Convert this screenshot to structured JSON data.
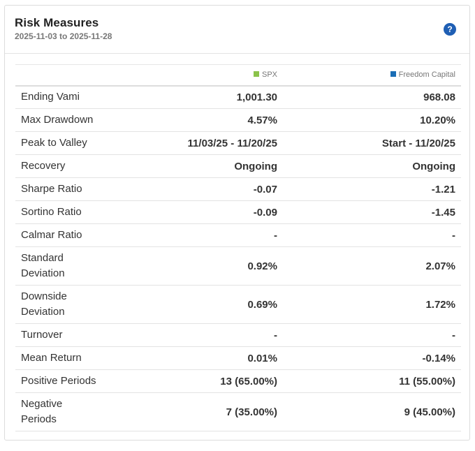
{
  "header": {
    "title": "Risk Measures",
    "date_range": "2025-11-03 to 2025-11-28",
    "help_icon": "question-mark-icon"
  },
  "columns": [
    {
      "name": "SPX",
      "color": "#8bc34a"
    },
    {
      "name": "Freedom Capital",
      "color": "#1a6db5"
    }
  ],
  "rows": [
    {
      "label": "Ending Vami",
      "spx": "1,001.30",
      "fc": "968.08"
    },
    {
      "label": "Max Drawdown",
      "spx": "4.57%",
      "fc": "10.20%"
    },
    {
      "label": "Peak to Valley",
      "spx": "11/03/25 - 11/20/25",
      "fc": "Start - 11/20/25"
    },
    {
      "label": "Recovery",
      "spx": "Ongoing",
      "fc": "Ongoing"
    },
    {
      "label": "Sharpe Ratio",
      "spx": "-0.07",
      "fc": "-1.21"
    },
    {
      "label": "Sortino Ratio",
      "spx": "-0.09",
      "fc": "-1.45"
    },
    {
      "label": "Calmar Ratio",
      "spx": "-",
      "fc": "-"
    },
    {
      "label_line1": "Standard",
      "label_line2": "Deviation",
      "spx": "0.92%",
      "fc": "2.07%"
    },
    {
      "label_line1": "Downside",
      "label_line2": "Deviation",
      "spx": "0.69%",
      "fc": "1.72%"
    },
    {
      "label": "Turnover",
      "spx": "-",
      "fc": "-"
    },
    {
      "label": "Mean Return",
      "spx": "0.01%",
      "fc": "-0.14%"
    },
    {
      "label": "Positive Periods",
      "spx": "13 (65.00%)",
      "fc": "11 (55.00%)"
    },
    {
      "label_line1": "Negative",
      "label_line2": "Periods",
      "spx": "7 (35.00%)",
      "fc": "9 (45.00%)"
    }
  ]
}
